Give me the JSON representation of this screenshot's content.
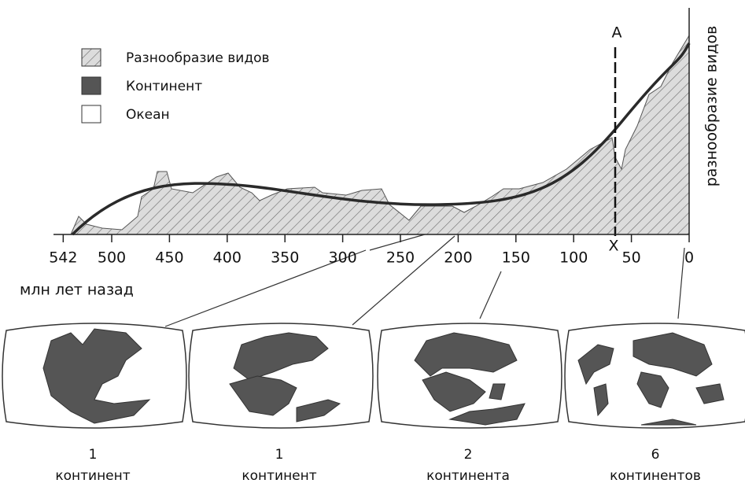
{
  "legend": {
    "items": [
      "Разнообразие видов",
      "Континент",
      "Океан"
    ]
  },
  "axis": {
    "ticks": [
      542,
      500,
      450,
      400,
      350,
      300,
      250,
      200,
      150,
      100,
      50,
      0
    ],
    "label": "млн лет назад",
    "ylabel": "разнообразие видов"
  },
  "markers": {
    "top": "A",
    "bottom": "X"
  },
  "maps": [
    {
      "count": 1,
      "label": "континент"
    },
    {
      "count": 1,
      "label": "континент"
    },
    {
      "count": 2,
      "label": "континента"
    },
    {
      "count": 6,
      "label": "континентов"
    }
  ]
}
